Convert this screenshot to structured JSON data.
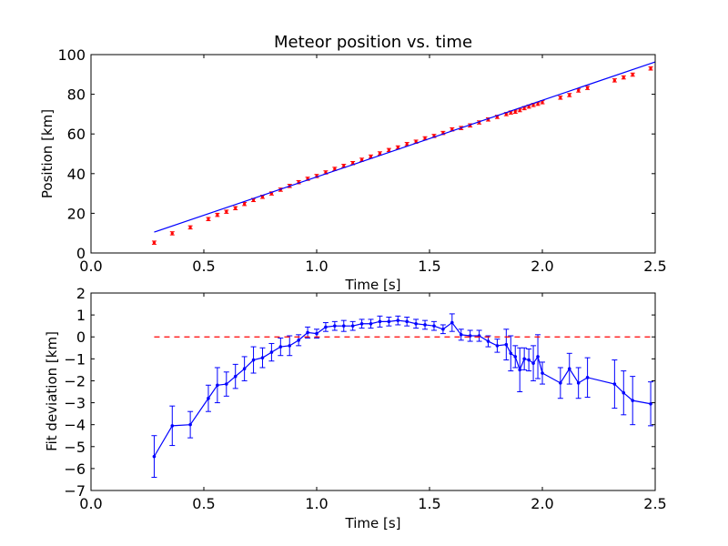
{
  "chart_data": [
    {
      "type": "scatter",
      "title": "Meteor position vs. time",
      "xlabel": "Time [s]",
      "ylabel": "Position [km]",
      "xlim": [
        0.0,
        2.5
      ],
      "ylim": [
        0,
        100
      ],
      "xticks": [
        "0.0",
        "0.5",
        "1.0",
        "1.5",
        "2.0",
        "2.5"
      ],
      "yticks": [
        "0",
        "20",
        "40",
        "60",
        "80",
        "100"
      ],
      "grid": false,
      "colors": {
        "points": "#ff0000",
        "fit": "#0000ff"
      },
      "series": [
        {
          "kind": "points_with_errorbars",
          "x": [
            0.28,
            0.36,
            0.44,
            0.52,
            0.56,
            0.6,
            0.64,
            0.68,
            0.72,
            0.76,
            0.8,
            0.84,
            0.88,
            0.92,
            0.96,
            1.0,
            1.04,
            1.08,
            1.12,
            1.16,
            1.2,
            1.24,
            1.28,
            1.32,
            1.36,
            1.4,
            1.44,
            1.48,
            1.52,
            1.56,
            1.6,
            1.64,
            1.68,
            1.72,
            1.76,
            1.8,
            1.84,
            1.86,
            1.88,
            1.9,
            1.92,
            1.94,
            1.96,
            1.98,
            2.0,
            2.08,
            2.12,
            2.16,
            2.2,
            2.32,
            2.36,
            2.4,
            2.48
          ],
          "y": [
            5.2,
            9.9,
            12.9,
            17.1,
            19.2,
            20.8,
            22.6,
            24.7,
            26.7,
            28.3,
            30.0,
            31.9,
            33.8,
            35.7,
            37.4,
            38.8,
            40.6,
            42.4,
            43.9,
            45.3,
            47.0,
            48.6,
            50.2,
            51.9,
            53.2,
            54.9,
            56.1,
            57.8,
            59.0,
            60.5,
            62.3,
            63.0,
            64.3,
            65.8,
            67.3,
            68.6,
            70.0,
            70.8,
            71.2,
            72.0,
            73.0,
            73.8,
            74.6,
            75.2,
            76.0,
            78.3,
            79.6,
            81.9,
            83.2,
            87.0,
            88.5,
            89.9,
            93.0
          ],
          "yerr": 0.8
        },
        {
          "kind": "fit_line",
          "x": [
            0.28,
            2.5
          ],
          "y": [
            10.5,
            96.3
          ]
        }
      ]
    },
    {
      "type": "line",
      "xlabel": "Time [s]",
      "ylabel": "Fit deviation [km]",
      "xlim": [
        0.0,
        2.5
      ],
      "ylim": [
        -7,
        2
      ],
      "xticks": [
        "0.0",
        "0.5",
        "1.0",
        "1.5",
        "2.0",
        "2.5"
      ],
      "yticks": [
        "−7",
        "−6",
        "−5",
        "−4",
        "−3",
        "−2",
        "−1",
        "0",
        "1",
        "2"
      ],
      "grid": false,
      "colors": {
        "line": "#0000ff",
        "reference": "#ff0000"
      },
      "series": [
        {
          "kind": "line_with_errorbars",
          "x": [
            0.28,
            0.36,
            0.44,
            0.52,
            0.56,
            0.6,
            0.64,
            0.68,
            0.72,
            0.76,
            0.8,
            0.84,
            0.88,
            0.92,
            0.96,
            1.0,
            1.04,
            1.08,
            1.12,
            1.16,
            1.2,
            1.24,
            1.28,
            1.32,
            1.36,
            1.4,
            1.44,
            1.48,
            1.52,
            1.56,
            1.6,
            1.64,
            1.68,
            1.72,
            1.76,
            1.8,
            1.84,
            1.86,
            1.88,
            1.9,
            1.92,
            1.94,
            1.96,
            1.98,
            2.0,
            2.08,
            2.12,
            2.16,
            2.2,
            2.32,
            2.36,
            2.4,
            2.48
          ],
          "y": [
            -5.45,
            -4.05,
            -4.0,
            -2.8,
            -2.2,
            -2.15,
            -1.8,
            -1.45,
            -1.05,
            -0.95,
            -0.7,
            -0.45,
            -0.4,
            -0.15,
            0.2,
            0.15,
            0.45,
            0.5,
            0.5,
            0.5,
            0.6,
            0.6,
            0.7,
            0.7,
            0.75,
            0.7,
            0.6,
            0.55,
            0.5,
            0.35,
            0.65,
            0.1,
            0.05,
            0.05,
            -0.2,
            -0.4,
            -0.35,
            -0.75,
            -0.9,
            -1.5,
            -1.0,
            -1.05,
            -1.2,
            -0.9,
            -1.65,
            -2.1,
            -1.45,
            -2.1,
            -1.85,
            -2.15,
            -2.55,
            -2.9,
            -3.05
          ],
          "yerr": [
            0.95,
            0.9,
            0.6,
            0.6,
            0.8,
            0.55,
            0.55,
            0.55,
            0.6,
            0.45,
            0.4,
            0.4,
            0.45,
            0.25,
            0.25,
            0.2,
            0.2,
            0.2,
            0.25,
            0.2,
            0.2,
            0.2,
            0.25,
            0.2,
            0.2,
            0.2,
            0.2,
            0.2,
            0.2,
            0.2,
            0.4,
            0.25,
            0.25,
            0.25,
            0.25,
            0.3,
            0.7,
            0.8,
            0.5,
            1.0,
            0.5,
            0.5,
            0.8,
            1.0,
            0.5,
            0.7,
            0.7,
            0.7,
            0.9,
            1.1,
            1.0,
            1.1,
            1.0
          ]
        },
        {
          "kind": "reference_dashed",
          "x": [
            0.28,
            2.5
          ],
          "y": [
            0,
            0
          ]
        }
      ]
    }
  ]
}
